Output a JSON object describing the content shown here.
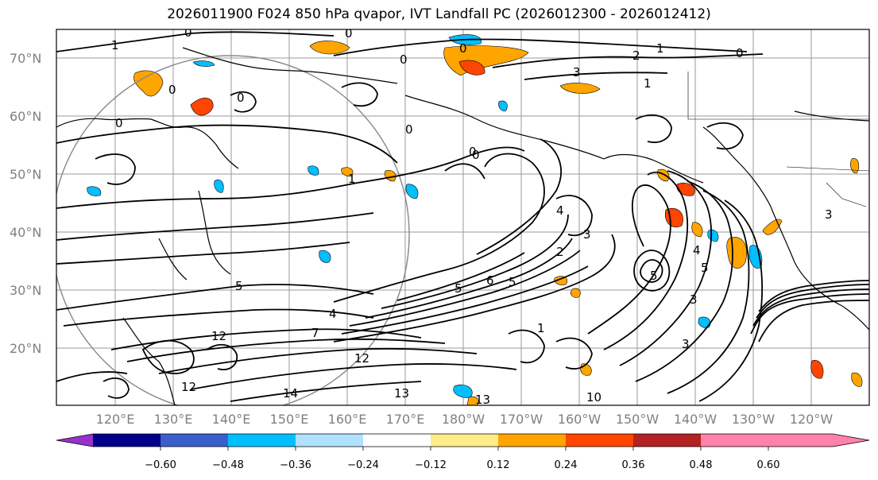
{
  "title": "2026011900 F024 850 hPa qvapor, IVT Landfall PC (2026012300 - 2026012412)",
  "lat_labels": [
    "70°N",
    "60°N",
    "50°N",
    "40°N",
    "30°N",
    "20°N"
  ],
  "lon_labels": [
    "120°E",
    "130°E",
    "140°E",
    "150°E",
    "160°E",
    "170°E",
    "180°W",
    "170°W",
    "160°W",
    "150°W",
    "140°W",
    "130°W",
    "120°W"
  ],
  "colorbar": {
    "colors": [
      "#9932cc",
      "#00008b",
      "#3a5fcd",
      "#00bfff",
      "#b0e2ff",
      "#ffffff",
      "#ffec8b",
      "#ffa500",
      "#ff4500",
      "#b22222",
      "#ff82ab"
    ],
    "tick_labels": [
      "−0.60",
      "−0.48",
      "−0.36",
      "−0.24",
      "−0.12",
      "0.12",
      "0.24",
      "0.36",
      "0.48",
      "0.60"
    ]
  },
  "contour_labels": [
    "0",
    "0",
    "1",
    "0",
    "0",
    "2",
    "1",
    "1",
    "3",
    "0",
    "0",
    "0",
    "0",
    "1",
    "0",
    "3",
    "5",
    "5",
    "6",
    "4",
    "5",
    "3",
    "1",
    "2",
    "4",
    "5",
    "3",
    "5",
    "7",
    "12",
    "12",
    "13",
    "14",
    "13",
    "12",
    "10",
    "3",
    "4",
    "0",
    "0"
  ],
  "map": {
    "extent": "110E - 110W, 10N - 75N",
    "features": [
      "coastlines",
      "lat-lon grid",
      "IVT contours",
      "850 hPa qvapor PC shading",
      "great-circle range ring"
    ]
  }
}
